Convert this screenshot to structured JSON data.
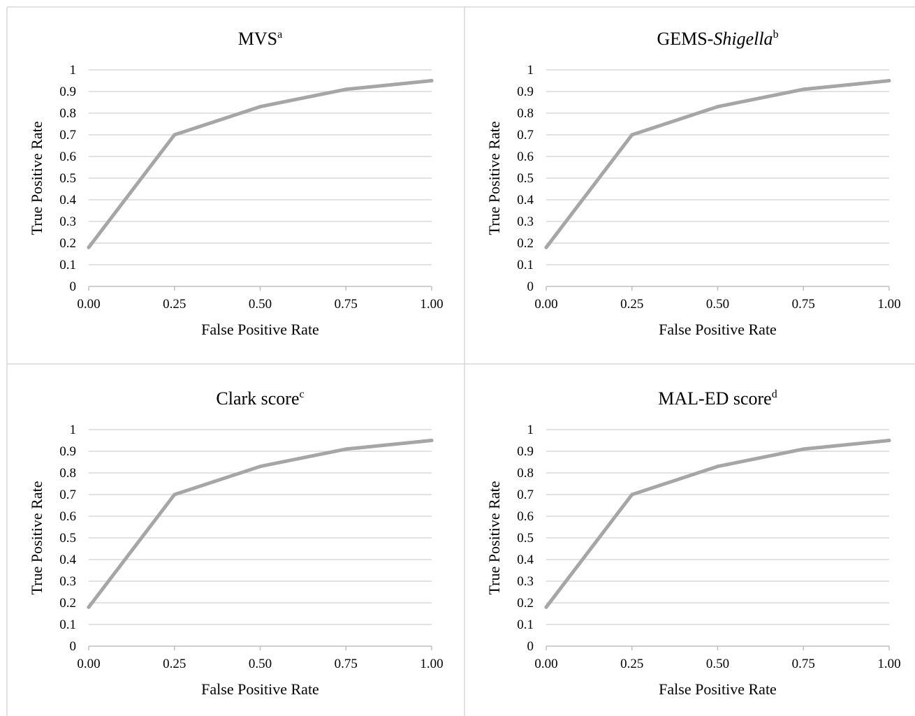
{
  "chart_data": [
    {
      "type": "line",
      "title": "MVS",
      "title_italic": "",
      "title_superscript": "a",
      "xlabel": "False Positive Rate",
      "ylabel": "True Positive Rate",
      "xlim": [
        0,
        1
      ],
      "ylim": [
        0,
        1
      ],
      "x_tick_labels": [
        "0.00",
        "0.25",
        "0.50",
        "0.75",
        "1.00"
      ],
      "y_tick_labels": [
        "0",
        "0.1",
        "0.2",
        "0.3",
        "0.4",
        "0.5",
        "0.6",
        "0.7",
        "0.8",
        "0.9",
        "1"
      ],
      "grid": "horizontal",
      "series": [
        {
          "x": [
            0.0,
            0.25,
            0.5,
            0.75,
            1.0
          ],
          "values": [
            0.18,
            0.7,
            0.83,
            0.91,
            0.95
          ],
          "color": "#a6a6a6"
        }
      ]
    },
    {
      "type": "line",
      "title": "GEMS-",
      "title_italic": "Shigella",
      "title_superscript": "b",
      "xlabel": "False Positive Rate",
      "ylabel": "True Positive Rate",
      "xlim": [
        0,
        1
      ],
      "ylim": [
        0,
        1
      ],
      "x_tick_labels": [
        "0.00",
        "0.25",
        "0.50",
        "0.75",
        "1.00"
      ],
      "y_tick_labels": [
        "0",
        "0.1",
        "0.2",
        "0.3",
        "0.4",
        "0.5",
        "0.6",
        "0.7",
        "0.8",
        "0.9",
        "1"
      ],
      "grid": "horizontal",
      "series": [
        {
          "x": [
            0.0,
            0.25,
            0.5,
            0.75,
            1.0
          ],
          "values": [
            0.18,
            0.7,
            0.83,
            0.91,
            0.95
          ],
          "color": "#a6a6a6"
        }
      ]
    },
    {
      "type": "line",
      "title": "Clark score",
      "title_italic": "",
      "title_superscript": "c",
      "xlabel": "False Positive Rate",
      "ylabel": "True Positive Rate",
      "xlim": [
        0,
        1
      ],
      "ylim": [
        0,
        1
      ],
      "x_tick_labels": [
        "0.00",
        "0.25",
        "0.50",
        "0.75",
        "1.00"
      ],
      "y_tick_labels": [
        "0",
        "0.1",
        "0.2",
        "0.3",
        "0.4",
        "0.5",
        "0.6",
        "0.7",
        "0.8",
        "0.9",
        "1"
      ],
      "grid": "horizontal",
      "series": [
        {
          "x": [
            0.0,
            0.25,
            0.5,
            0.75,
            1.0
          ],
          "values": [
            0.18,
            0.7,
            0.83,
            0.91,
            0.95
          ],
          "color": "#a6a6a6"
        }
      ]
    },
    {
      "type": "line",
      "title": "MAL-ED score",
      "title_italic": "",
      "title_superscript": "d",
      "xlabel": "False Positive Rate",
      "ylabel": "True Positive Rate",
      "xlim": [
        0,
        1
      ],
      "ylim": [
        0,
        1
      ],
      "x_tick_labels": [
        "0.00",
        "0.25",
        "0.50",
        "0.75",
        "1.00"
      ],
      "y_tick_labels": [
        "0",
        "0.1",
        "0.2",
        "0.3",
        "0.4",
        "0.5",
        "0.6",
        "0.7",
        "0.8",
        "0.9",
        "1"
      ],
      "grid": "horizontal",
      "series": [
        {
          "x": [
            0.0,
            0.25,
            0.5,
            0.75,
            1.0
          ],
          "values": [
            0.18,
            0.7,
            0.83,
            0.91,
            0.95
          ],
          "color": "#a6a6a6"
        }
      ]
    }
  ],
  "colors": {
    "gridline": "#d9d9d9",
    "axis": "#bfbfbf",
    "panel_border": "#d9d9d9",
    "series_line": "#a6a6a6"
  }
}
